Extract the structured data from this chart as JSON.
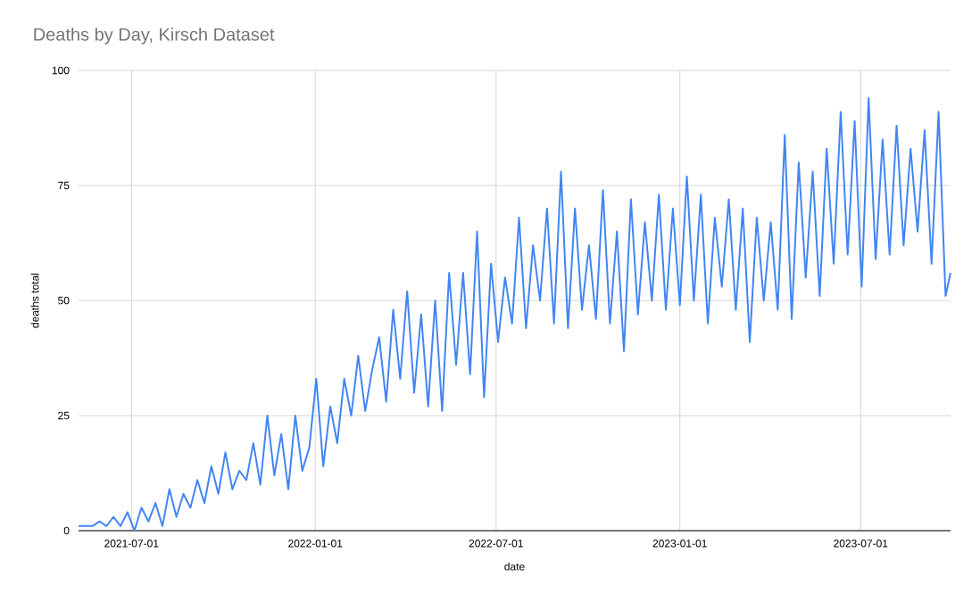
{
  "chart_data": {
    "type": "line",
    "title": "Deaths by Day, Kirsch Dataset",
    "xlabel": "date",
    "ylabel": "deaths total",
    "x": [
      "2021-05-09",
      "2021-05-16",
      "2021-05-23",
      "2021-05-30",
      "2021-06-06",
      "2021-06-13",
      "2021-06-20",
      "2021-06-27",
      "2021-07-04",
      "2021-07-11",
      "2021-07-18",
      "2021-07-25",
      "2021-08-01",
      "2021-08-08",
      "2021-08-15",
      "2021-08-22",
      "2021-08-29",
      "2021-09-05",
      "2021-09-12",
      "2021-09-19",
      "2021-09-26",
      "2021-10-03",
      "2021-10-10",
      "2021-10-17",
      "2021-10-24",
      "2021-10-31",
      "2021-11-07",
      "2021-11-14",
      "2021-11-21",
      "2021-11-28",
      "2021-12-05",
      "2021-12-12",
      "2021-12-19",
      "2021-12-26",
      "2022-01-02",
      "2022-01-09",
      "2022-01-16",
      "2022-01-23",
      "2022-01-30",
      "2022-02-06",
      "2022-02-13",
      "2022-02-20",
      "2022-02-27",
      "2022-03-06",
      "2022-03-13",
      "2022-03-20",
      "2022-03-27",
      "2022-04-03",
      "2022-04-10",
      "2022-04-17",
      "2022-04-24",
      "2022-05-01",
      "2022-05-08",
      "2022-05-15",
      "2022-05-22",
      "2022-05-29",
      "2022-06-05",
      "2022-06-12",
      "2022-06-19",
      "2022-06-26",
      "2022-07-03",
      "2022-07-10",
      "2022-07-17",
      "2022-07-24",
      "2022-07-31",
      "2022-08-07",
      "2022-08-14",
      "2022-08-21",
      "2022-08-28",
      "2022-09-04",
      "2022-09-11",
      "2022-09-18",
      "2022-09-25",
      "2022-10-02",
      "2022-10-09",
      "2022-10-16",
      "2022-10-23",
      "2022-10-30",
      "2022-11-06",
      "2022-11-13",
      "2022-11-20",
      "2022-11-27",
      "2022-12-04",
      "2022-12-11",
      "2022-12-18",
      "2022-12-25",
      "2023-01-01",
      "2023-01-08",
      "2023-01-15",
      "2023-01-22",
      "2023-01-29",
      "2023-02-05",
      "2023-02-12",
      "2023-02-19",
      "2023-02-26",
      "2023-03-05",
      "2023-03-12",
      "2023-03-19",
      "2023-03-26",
      "2023-04-02",
      "2023-04-09",
      "2023-04-16",
      "2023-04-23",
      "2023-04-30",
      "2023-05-07",
      "2023-05-14",
      "2023-05-21",
      "2023-05-28",
      "2023-06-04",
      "2023-06-11",
      "2023-06-18",
      "2023-06-25",
      "2023-07-02",
      "2023-07-09",
      "2023-07-16",
      "2023-07-23",
      "2023-07-30",
      "2023-08-06",
      "2023-08-13",
      "2023-08-20",
      "2023-08-27",
      "2023-09-03",
      "2023-09-10",
      "2023-09-17",
      "2023-09-24",
      "2023-09-29"
    ],
    "series": [
      {
        "color": "#4285f4",
        "values": [
          1,
          1,
          1,
          2,
          1,
          3,
          1,
          4,
          0,
          5,
          2,
          6,
          1,
          9,
          3,
          8,
          5,
          11,
          6,
          14,
          8,
          17,
          9,
          13,
          11,
          19,
          10,
          25,
          12,
          21,
          9,
          25,
          13,
          18,
          33,
          14,
          27,
          19,
          33,
          25,
          38,
          26,
          35,
          42,
          28,
          48,
          33,
          52,
          30,
          47,
          27,
          50,
          26,
          56,
          36,
          56,
          34,
          65,
          29,
          58,
          41,
          55,
          45,
          68,
          44,
          62,
          50,
          70,
          45,
          78,
          44,
          70,
          48,
          62,
          46,
          74,
          45,
          65,
          39,
          72,
          47,
          67,
          50,
          73,
          48,
          70,
          49,
          77,
          50,
          73,
          45,
          68,
          53,
          72,
          48,
          70,
          41,
          68,
          50,
          67,
          48,
          86,
          46,
          80,
          55,
          78,
          51,
          83,
          58,
          91,
          60,
          89,
          53,
          94,
          59,
          85,
          60,
          88,
          62,
          83,
          65,
          87,
          58,
          91,
          51,
          56
        ]
      }
    ],
    "xlim": [
      "2021-05-09",
      "2023-09-29"
    ],
    "xticks": [
      "2021-07-01",
      "2022-01-01",
      "2022-07-01",
      "2023-01-01",
      "2023-07-01"
    ],
    "ylim": [
      0,
      100
    ],
    "yticks": [
      0,
      25,
      50,
      75,
      100
    ],
    "grid": true,
    "line_style": "solid"
  }
}
